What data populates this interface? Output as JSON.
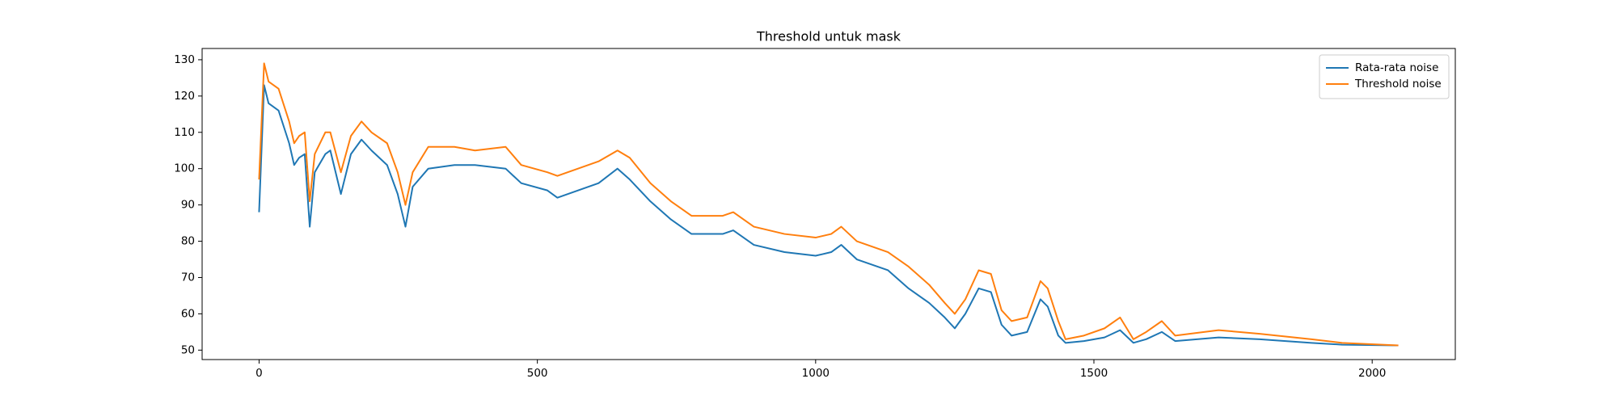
{
  "chart_data": {
    "type": "line",
    "title": "Threshold untuk mask",
    "x": [
      0,
      9,
      17,
      35,
      54,
      63,
      72,
      82,
      91,
      100,
      119,
      128,
      147,
      165,
      184,
      202,
      230,
      249,
      263,
      276,
      304,
      351,
      388,
      443,
      471,
      518,
      536,
      573,
      610,
      644,
      666,
      703,
      740,
      777,
      833,
      852,
      889,
      944,
      1000,
      1028,
      1046,
      1074,
      1130,
      1167,
      1204,
      1232,
      1250,
      1269,
      1293,
      1315,
      1334,
      1352,
      1380,
      1404,
      1417,
      1436,
      1449,
      1482,
      1519,
      1547,
      1571,
      1594,
      1622,
      1646,
      1724,
      1798,
      1891,
      1946,
      2047
    ],
    "series": [
      {
        "name": "Rata-rata noise",
        "color": "#1f77b4",
        "values": [
          88,
          123,
          118,
          116,
          107,
          101,
          103,
          104,
          84,
          99,
          104,
          105,
          93,
          104,
          108,
          105,
          101,
          93,
          84,
          95,
          100,
          101,
          101,
          100,
          96,
          94,
          92,
          94,
          96,
          100,
          97,
          91,
          86,
          82,
          82,
          83,
          79,
          77,
          76,
          77,
          79,
          75,
          72,
          67,
          63,
          59,
          56,
          60,
          67,
          66,
          57,
          54,
          55,
          64,
          62,
          54,
          52,
          52.5,
          53.5,
          55.5,
          52,
          53,
          55,
          52.5,
          53.5,
          53,
          52,
          51.5,
          51.3
        ]
      },
      {
        "name": "Threshold noise",
        "color": "#ff7f0e",
        "values": [
          97,
          129,
          124,
          122,
          113,
          107,
          109,
          110,
          91,
          104,
          110,
          110,
          99,
          109,
          113,
          110,
          107,
          99,
          90,
          99,
          106,
          106,
          105,
          106,
          101,
          99,
          98,
          100,
          102,
          105,
          103,
          96,
          91,
          87,
          87,
          88,
          84,
          82,
          81,
          82,
          84,
          80,
          77,
          73,
          68,
          63,
          60,
          64,
          72,
          71,
          61,
          58,
          59,
          69,
          67,
          58,
          53,
          54,
          56,
          59,
          53,
          55,
          58,
          54,
          55.5,
          54.5,
          53,
          52,
          51.3
        ]
      }
    ],
    "xlim": [
      -102.35,
      2149.35
    ],
    "xticks": [
      0,
      500,
      1000,
      1500,
      2000
    ],
    "ylim": [
      47.4,
      133.1
    ],
    "yticks": [
      50,
      60,
      70,
      80,
      90,
      100,
      110,
      120,
      130
    ],
    "legend": "upper right"
  }
}
